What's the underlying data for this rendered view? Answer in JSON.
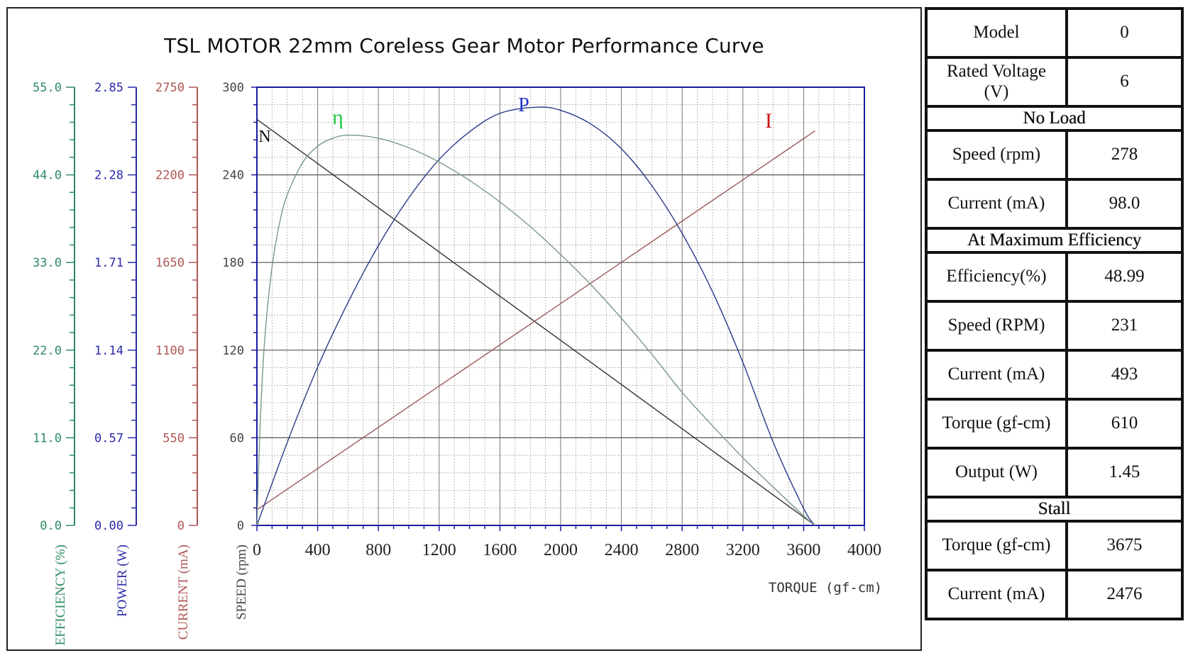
{
  "chart_data": {
    "type": "line",
    "title": "TSL MOTOR 22mm Coreless Gear Motor Performance Curve",
    "xlabel": "TORQUE (gf-cm)",
    "xlim": [
      0,
      4000
    ],
    "x_ticks": [
      "0",
      "400",
      "800",
      "1200",
      "1600",
      "2000",
      "2400",
      "2800",
      "3200",
      "3600",
      "4000"
    ],
    "axes": [
      {
        "id": "efficiency",
        "label": "EFFICIENCY (%)",
        "color": "#2e8b63",
        "range": [
          0,
          55
        ],
        "ticks": [
          "0.0",
          "11.0",
          "22.0",
          "33.0",
          "44.0",
          "55.0"
        ]
      },
      {
        "id": "power",
        "label": "POWER (W)",
        "color": "#2a2aa8",
        "range": [
          0,
          2.85
        ],
        "ticks": [
          "0.00",
          "0.57",
          "1.14",
          "1.71",
          "2.28",
          "2.85"
        ]
      },
      {
        "id": "current",
        "label": "CURRENT (mA)",
        "color": "#b05555",
        "range": [
          0,
          2750
        ],
        "ticks": [
          "0",
          "550",
          "1100",
          "1650",
          "2200",
          "2750"
        ]
      },
      {
        "id": "speed",
        "label": "SPEED (rpm)",
        "color": "#444444",
        "range": [
          0,
          300
        ],
        "ticks": [
          "0",
          "60",
          "120",
          "180",
          "240",
          "300"
        ]
      }
    ],
    "series": [
      {
        "name": "N",
        "axis": "speed",
        "color": "#333333",
        "label_color": "#111111",
        "x": [
          0,
          3675
        ],
        "y": [
          278,
          0
        ]
      },
      {
        "name": "I",
        "axis": "current",
        "color": "#a05858",
        "label_color": "#cc1111",
        "x": [
          0,
          3675
        ],
        "y": [
          98,
          2476
        ]
      },
      {
        "name": "P",
        "axis": "power",
        "color": "#2a3a8a",
        "label_color": "#2233cc",
        "x": [
          0,
          200,
          400,
          600,
          800,
          1000,
          1200,
          1400,
          1600,
          1838,
          2000,
          2200,
          2400,
          2600,
          2800,
          3000,
          3200,
          3400,
          3600,
          3675
        ],
        "y": [
          0,
          0.54,
          1.03,
          1.45,
          1.82,
          2.13,
          2.38,
          2.56,
          2.68,
          2.72,
          2.7,
          2.61,
          2.45,
          2.21,
          1.9,
          1.52,
          1.06,
          0.54,
          0.11,
          0
        ]
      },
      {
        "name": "η",
        "axis": "efficiency",
        "color": "#7a9a88",
        "label_color": "#22cc44",
        "x": [
          0,
          20,
          50,
          100,
          150,
          200,
          300,
          400,
          500,
          610,
          800,
          1000,
          1200,
          1400,
          1600,
          1800,
          2000,
          2200,
          2400,
          2600,
          2800,
          3000,
          3200,
          3400,
          3600,
          3675
        ],
        "y": [
          0,
          12,
          23,
          32.5,
          38,
          41.5,
          45.5,
          47.6,
          48.6,
          48.99,
          48.6,
          47.4,
          45.6,
          43.3,
          40.6,
          37.5,
          34.0,
          30.2,
          26.0,
          21.5,
          16.7,
          12.5,
          8.5,
          4.8,
          1.2,
          0
        ]
      }
    ]
  },
  "specs": {
    "model_label": "Model",
    "model_value": "0",
    "voltage_label": "Rated Voltage\n(V)",
    "voltage_value": "6",
    "no_load_title": "No Load",
    "nl_speed_label": "Speed (rpm)",
    "nl_speed_value": "278",
    "nl_current_label": "Current (mA)",
    "nl_current_value": "98.0",
    "max_eff_title": "At Maximum Efficiency",
    "me_eff_label": "Efficiency(%)",
    "me_eff_value": "48.99",
    "me_speed_label": "Speed (RPM)",
    "me_speed_value": "231",
    "me_current_label": "Current (mA)",
    "me_current_value": "493",
    "me_torque_label": "Torque (gf-cm)",
    "me_torque_value": "610",
    "me_output_label": "Output (W)",
    "me_output_value": "1.45",
    "stall_title": "Stall",
    "st_torque_label": "Torque (gf-cm)",
    "st_torque_value": "3675",
    "st_current_label": "Current (mA)",
    "st_current_value": "2476"
  }
}
